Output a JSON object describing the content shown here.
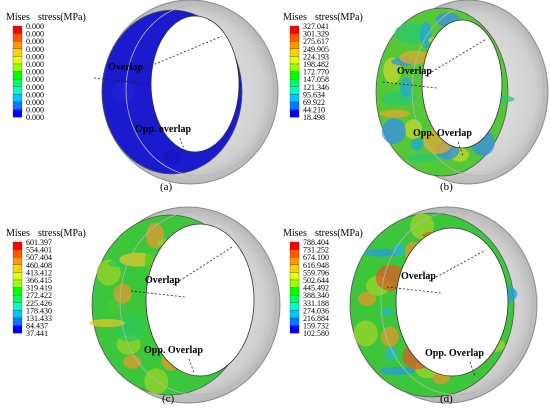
{
  "figure": {
    "panels": [
      {
        "caption": "(a)",
        "legend": {
          "title_left": "Mises",
          "title_right": "stress(MPa)",
          "ticks": [
            "0.000",
            "0.000",
            "0.000",
            "0.000",
            "0.000",
            "0.000",
            "0.000",
            "0.000",
            "0.000",
            "0.000",
            "0.000",
            "0.000",
            "0.000"
          ]
        },
        "labels": {
          "overlap": "Overlap",
          "opp_overlap": "Opp. overlap"
        },
        "fill_colors": [
          "#1a1acf",
          "#2a2ae0",
          "#1212b8"
        ]
      },
      {
        "caption": "(b)",
        "legend": {
          "title_left": "Mises",
          "title_right": "stress(MPa)",
          "ticks": [
            "327.041",
            "301.329",
            "275.617",
            "249.905",
            "224.193",
            "198.482",
            "172.770",
            "147.058",
            "121.346",
            "95.634",
            "69.922",
            "44.210",
            "18.498"
          ]
        },
        "labels": {
          "overlap": "Overlap",
          "opp_overlap": "Opp. Overlap"
        },
        "fill_colors": [
          "#55c83a",
          "#1fa9d6",
          "#c9d52b",
          "#3a8ee8",
          "#e3a82d",
          "#2ac86e"
        ]
      },
      {
        "caption": "(c)",
        "legend": {
          "title_left": "Mises",
          "title_right": "stress(MPa)",
          "ticks": [
            "601.397",
            "554.401",
            "507.404",
            "460.408",
            "413.412",
            "366.415",
            "319.419",
            "272.422",
            "225.426",
            "178.430",
            "131.433",
            "84.437",
            "37.441"
          ]
        },
        "labels": {
          "overlap": "Overlap",
          "opp_overlap": "Opp. Overlap"
        },
        "fill_colors": [
          "#3cc63c",
          "#48cc2e",
          "#e49a2c",
          "#9ad424",
          "#2bc85a",
          "#e6c52a"
        ]
      },
      {
        "caption": "(d)",
        "legend": {
          "title_left": "Mises",
          "title_right": "stress(MPa)",
          "ticks": [
            "788.404",
            "731.252",
            "674.100",
            "616.948",
            "559.796",
            "502.644",
            "445.492",
            "388.340",
            "331.188",
            "274.036",
            "216.884",
            "159.732",
            "102.580"
          ]
        },
        "labels": {
          "overlap": "Overlap",
          "opp_overlap": "Opp. Overlap"
        },
        "fill_colors": [
          "#3cc63c",
          "#2ab7c9",
          "#e4982a",
          "#a0d42a",
          "#e05a22",
          "#2a9ae0"
        ]
      }
    ],
    "colormap": [
      "#ff0000",
      "#ff5a00",
      "#ff9900",
      "#ffd200",
      "#e6ff00",
      "#9bff00",
      "#00ff00",
      "#00ff66",
      "#00ffc8",
      "#00c8ff",
      "#0078ff",
      "#0000ff"
    ],
    "shell_color": "#d4d4d4"
  }
}
